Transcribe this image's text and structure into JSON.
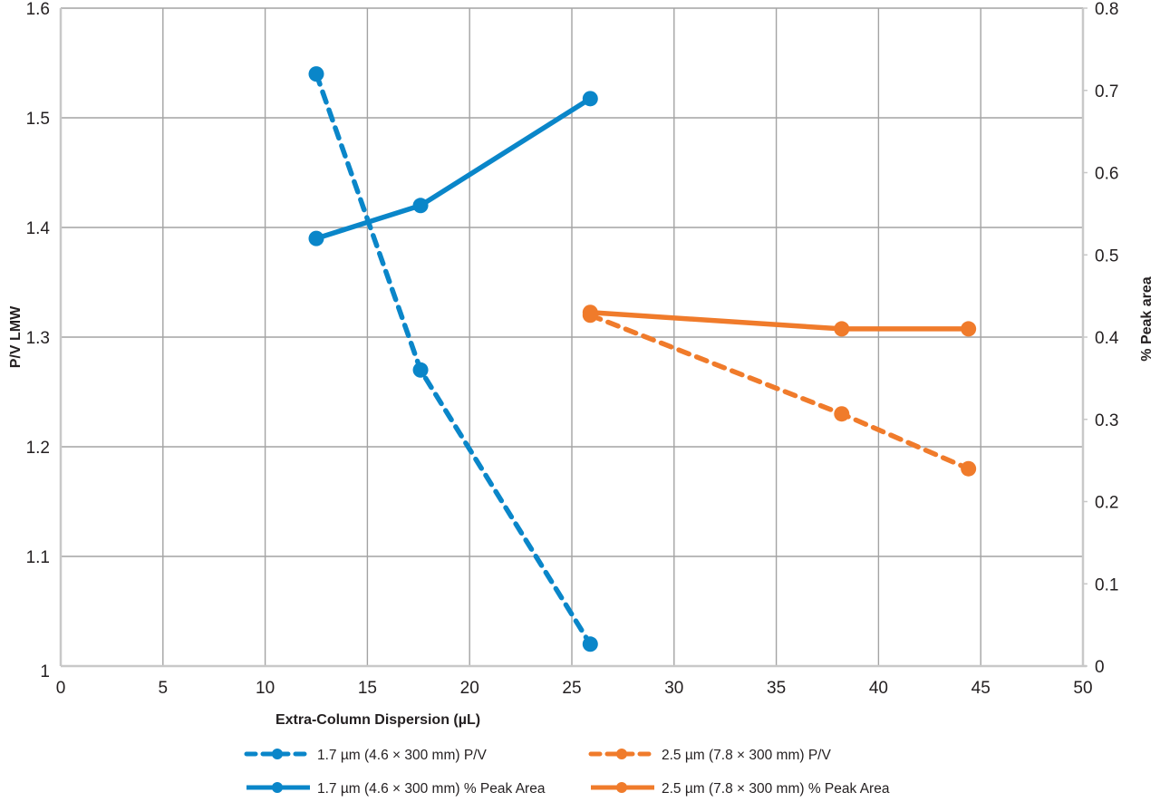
{
  "chart_data": {
    "type": "line",
    "title": "",
    "xlabel": "Extra-Column Dispersion (µL)",
    "ylabel": "P/V LMW",
    "y2label": "% Peak area",
    "xlim": [
      0,
      50
    ],
    "ylim": [
      1,
      1.6
    ],
    "y2lim": [
      0,
      0.8
    ],
    "x_ticks": [
      "0",
      "5",
      "10",
      "15",
      "20",
      "25",
      "30",
      "35",
      "40",
      "45",
      "50"
    ],
    "x_tick_values": [
      0,
      5,
      10,
      15,
      20,
      25,
      30,
      35,
      40,
      45,
      50
    ],
    "y_ticks": [
      "1",
      "1.1",
      "1.2",
      "1.3",
      "1.4",
      "1.5",
      "1.6"
    ],
    "y_tick_values": [
      1,
      1.1,
      1.2,
      1.3,
      1.4,
      1.5,
      1.6
    ],
    "y2_ticks": [
      "0",
      "0.1",
      "0.2",
      "0.3",
      "0.4",
      "0.5",
      "0.6",
      "0.7",
      "0.8"
    ],
    "y2_tick_values": [
      0,
      0.1,
      0.2,
      0.3,
      0.4,
      0.5,
      0.6,
      0.7,
      0.8
    ],
    "grid": true,
    "legend_position": "bottom",
    "series": [
      {
        "name": "1.7 µm (4.6 × 300 mm) P/V",
        "axis": "left",
        "style": "dashed",
        "color": "#0a86c9",
        "x": [
          12.5,
          17.6,
          25.9
        ],
        "values": [
          1.54,
          1.27,
          1.02
        ]
      },
      {
        "name": "2.5 µm (7.8 × 300 mm) P/V",
        "axis": "left",
        "style": "dashed",
        "color": "#f07b2b",
        "x": [
          25.9,
          38.2,
          44.4
        ],
        "values": [
          1.32,
          1.23,
          1.18
        ]
      },
      {
        "name": "1.7 µm (4.6 × 300 mm) % Peak Area",
        "axis": "right",
        "style": "solid",
        "color": "#0a86c9",
        "x": [
          12.5,
          17.6,
          25.9
        ],
        "values": [
          0.52,
          0.56,
          0.69
        ]
      },
      {
        "name": "2.5 µm (7.8 × 300 mm) % Peak Area",
        "axis": "right",
        "style": "solid",
        "color": "#f07b2b",
        "x": [
          25.9,
          38.2,
          44.4
        ],
        "values": [
          0.43,
          0.41,
          0.41
        ]
      }
    ]
  }
}
